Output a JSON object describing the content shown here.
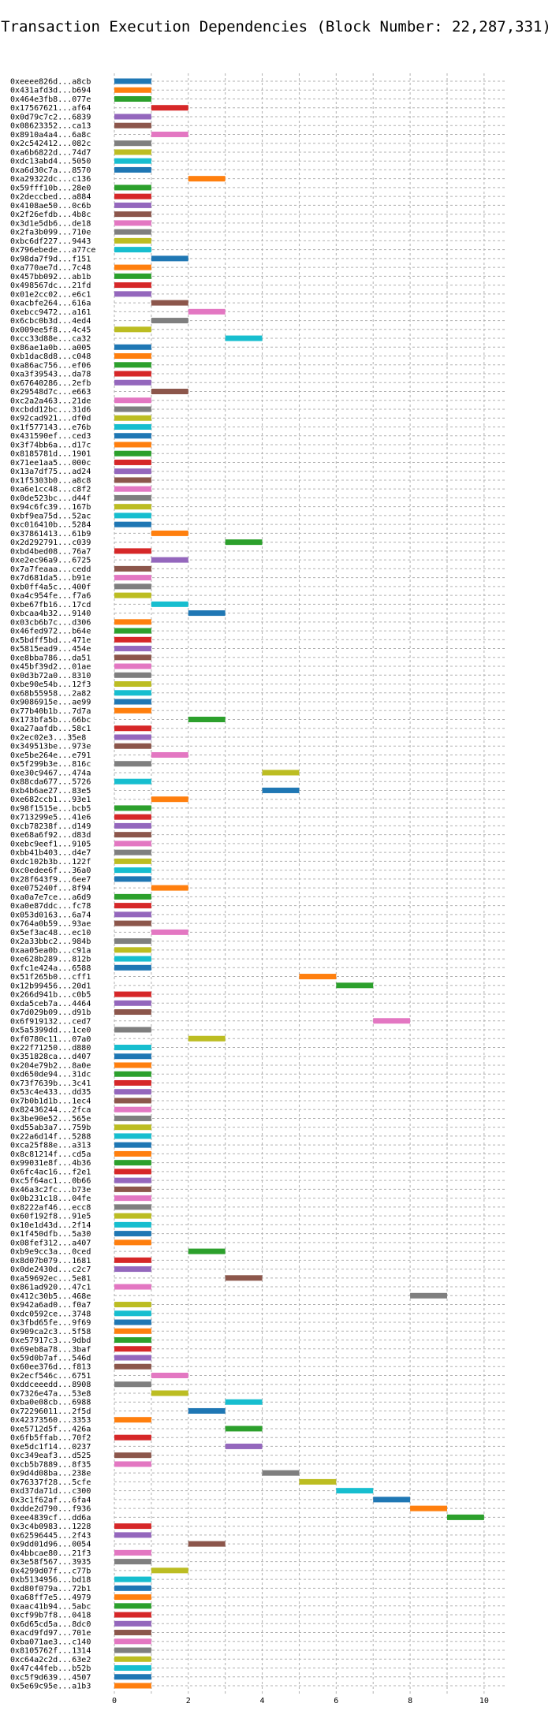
{
  "chart_data": {
    "type": "bar",
    "orientation": "horizontal",
    "title": "Transaction Execution Dependencies (Block Number: 22,287,331)",
    "xlabel": "",
    "ylabel": "",
    "xlim": [
      0,
      10.6
    ],
    "xticks": [
      0,
      2,
      4,
      6,
      8,
      10
    ],
    "grid": true,
    "colors": [
      "#1f77b4",
      "#ff7f0e",
      "#2ca02c",
      "#d62728",
      "#9467bd",
      "#8c564b",
      "#e377c2",
      "#7f7f7f",
      "#bcbd22",
      "#17becf"
    ],
    "transactions": [
      {
        "label": "0xeeee826d...a8cb",
        "start": 0,
        "end": 1
      },
      {
        "label": "0x431afd3d...b694",
        "start": 0,
        "end": 1
      },
      {
        "label": "0x464e3fb8...077e",
        "start": 0,
        "end": 1
      },
      {
        "label": "0x17567621...af64",
        "start": 1,
        "end": 2
      },
      {
        "label": "0x0d79c7c2...6839",
        "start": 0,
        "end": 1
      },
      {
        "label": "0x08623352...ca13",
        "start": 0,
        "end": 1
      },
      {
        "label": "0x8910a4a4...6a8c",
        "start": 1,
        "end": 2
      },
      {
        "label": "0x2c542412...082c",
        "start": 0,
        "end": 1
      },
      {
        "label": "0xa6b6822d...74d7",
        "start": 0,
        "end": 1
      },
      {
        "label": "0xdc13abd4...5050",
        "start": 0,
        "end": 1
      },
      {
        "label": "0xa6d30c7a...8570",
        "start": 0,
        "end": 1
      },
      {
        "label": "0xa29322dc...c136",
        "start": 2,
        "end": 3
      },
      {
        "label": "0x59fff10b...28e0",
        "start": 0,
        "end": 1
      },
      {
        "label": "0x2deccbed...a884",
        "start": 0,
        "end": 1
      },
      {
        "label": "0x4108ae50...0c6b",
        "start": 0,
        "end": 1
      },
      {
        "label": "0x2f26efdb...4b8c",
        "start": 0,
        "end": 1
      },
      {
        "label": "0x3d1e5db6...de18",
        "start": 0,
        "end": 1
      },
      {
        "label": "0x2fa3b099...710e",
        "start": 0,
        "end": 1
      },
      {
        "label": "0xbc6df227...9443",
        "start": 0,
        "end": 1
      },
      {
        "label": "0x796ebede...a77ce",
        "start": 0,
        "end": 1
      },
      {
        "label": "0x98da7f9d...f151",
        "start": 1,
        "end": 2
      },
      {
        "label": "0xa770ae7d...7c48",
        "start": 0,
        "end": 1
      },
      {
        "label": "0x457bb092...ab1b",
        "start": 0,
        "end": 1
      },
      {
        "label": "0x498567dc...21fd",
        "start": 0,
        "end": 1
      },
      {
        "label": "0x01e2cc02...e6c1",
        "start": 0,
        "end": 1
      },
      {
        "label": "0xacbfe264...616a",
        "start": 1,
        "end": 2
      },
      {
        "label": "0xebcc9472...a161",
        "start": 2,
        "end": 3
      },
      {
        "label": "0x6cbc0b3d...4ed4",
        "start": 1,
        "end": 2
      },
      {
        "label": "0x009ee5f8...4c45",
        "start": 0,
        "end": 1
      },
      {
        "label": "0xcc33d88e...ca32",
        "start": 3,
        "end": 4
      },
      {
        "label": "0x86ae1a0b...a005",
        "start": 0,
        "end": 1
      },
      {
        "label": "0xb1dac8d8...c048",
        "start": 0,
        "end": 1
      },
      {
        "label": "0xa86ac756...ef06",
        "start": 0,
        "end": 1
      },
      {
        "label": "0xa3f39543...da78",
        "start": 0,
        "end": 1
      },
      {
        "label": "0x67640286...2efb",
        "start": 0,
        "end": 1
      },
      {
        "label": "0x29548d7c...e663",
        "start": 1,
        "end": 2
      },
      {
        "label": "0xc2a2a463...21de",
        "start": 0,
        "end": 1
      },
      {
        "label": "0xcbdd12bc...31d6",
        "start": 0,
        "end": 1
      },
      {
        "label": "0x92cad921...df0d",
        "start": 0,
        "end": 1
      },
      {
        "label": "0x1f577143...e76b",
        "start": 0,
        "end": 1
      },
      {
        "label": "0x431590ef...ced3",
        "start": 0,
        "end": 1
      },
      {
        "label": "0x3f74bb6a...d17c",
        "start": 0,
        "end": 1
      },
      {
        "label": "0x8185781d...1901",
        "start": 0,
        "end": 1
      },
      {
        "label": "0x71ee1aa5...000c",
        "start": 0,
        "end": 1
      },
      {
        "label": "0x13a7df75...ad24",
        "start": 0,
        "end": 1
      },
      {
        "label": "0x1f5303b0...a8c8",
        "start": 0,
        "end": 1
      },
      {
        "label": "0xa6e1cc48...c8f2",
        "start": 0,
        "end": 1
      },
      {
        "label": "0x0de523bc...d44f",
        "start": 0,
        "end": 1
      },
      {
        "label": "0x94c6fc39...167b",
        "start": 0,
        "end": 1
      },
      {
        "label": "0xbf9ea75d...52ac",
        "start": 0,
        "end": 1
      },
      {
        "label": "0xc016410b...5284",
        "start": 0,
        "end": 1
      },
      {
        "label": "0x37861413...61b9",
        "start": 1,
        "end": 2
      },
      {
        "label": "0x2d292791...c039",
        "start": 3,
        "end": 4
      },
      {
        "label": "0xbd4bed08...76a7",
        "start": 0,
        "end": 1
      },
      {
        "label": "0xe2ec96a9...6725",
        "start": 1,
        "end": 2
      },
      {
        "label": "0x7a7feaaa...cedd",
        "start": 0,
        "end": 1
      },
      {
        "label": "0x7d681da5...b91e",
        "start": 0,
        "end": 1
      },
      {
        "label": "0xb0ff4a5c...400f",
        "start": 0,
        "end": 1
      },
      {
        "label": "0xa4c954fe...f7a6",
        "start": 0,
        "end": 1
      },
      {
        "label": "0xbe67fb16...17cd",
        "start": 1,
        "end": 2
      },
      {
        "label": "0xbcaa4b32...9140",
        "start": 2,
        "end": 3
      },
      {
        "label": "0x03cb6b7c...d306",
        "start": 0,
        "end": 1
      },
      {
        "label": "0x46fed972...b64e",
        "start": 0,
        "end": 1
      },
      {
        "label": "0x5bdff5bd...471e",
        "start": 0,
        "end": 1
      },
      {
        "label": "0x5815ead9...454e",
        "start": 0,
        "end": 1
      },
      {
        "label": "0xe8bba786...da51",
        "start": 0,
        "end": 1
      },
      {
        "label": "0x45bf39d2...01ae",
        "start": 0,
        "end": 1
      },
      {
        "label": "0x0d3b72a0...8310",
        "start": 0,
        "end": 1
      },
      {
        "label": "0xbe90e54b...12f3",
        "start": 0,
        "end": 1
      },
      {
        "label": "0x68b55958...2a82",
        "start": 0,
        "end": 1
      },
      {
        "label": "0x9086915e...ae99",
        "start": 0,
        "end": 1
      },
      {
        "label": "0x77b40b1b...7d7a",
        "start": 0,
        "end": 1
      },
      {
        "label": "0x173bfa5b...66bc",
        "start": 2,
        "end": 3
      },
      {
        "label": "0xa27aafdb...58c1",
        "start": 0,
        "end": 1
      },
      {
        "label": "0x2ec02e3...35e8",
        "start": 0,
        "end": 1
      },
      {
        "label": "0x349513be...973e",
        "start": 0,
        "end": 1
      },
      {
        "label": "0xe5be264e...e791",
        "start": 1,
        "end": 2
      },
      {
        "label": "0x5f299b3e...816c",
        "start": 0,
        "end": 1
      },
      {
        "label": "0xe30c9467...474a",
        "start": 4,
        "end": 5
      },
      {
        "label": "0x88cda677...5726",
        "start": 0,
        "end": 1
      },
      {
        "label": "0xb4b6ae27...83e5",
        "start": 4,
        "end": 5
      },
      {
        "label": "0xe682ccb1...93e1",
        "start": 1,
        "end": 2
      },
      {
        "label": "0x98f1515e...bcb5",
        "start": 0,
        "end": 1
      },
      {
        "label": "0x713299e5...41e6",
        "start": 0,
        "end": 1
      },
      {
        "label": "0xcb78238f...d149",
        "start": 0,
        "end": 1
      },
      {
        "label": "0xe68a6f92...d83d",
        "start": 0,
        "end": 1
      },
      {
        "label": "0xebc9eef1...9105",
        "start": 0,
        "end": 1
      },
      {
        "label": "0xbb41b403...d4e7",
        "start": 0,
        "end": 1
      },
      {
        "label": "0xdc102b3b...122f",
        "start": 0,
        "end": 1
      },
      {
        "label": "0xc0edee6f...36a0",
        "start": 0,
        "end": 1
      },
      {
        "label": "0x28f643f9...6ee7",
        "start": 0,
        "end": 1
      },
      {
        "label": "0xe075240f...8f94",
        "start": 1,
        "end": 2
      },
      {
        "label": "0xa0a7e7ce...a6d9",
        "start": 0,
        "end": 1
      },
      {
        "label": "0xa0e87ddc...fc78",
        "start": 0,
        "end": 1
      },
      {
        "label": "0x053d0163...6a74",
        "start": 0,
        "end": 1
      },
      {
        "label": "0x764a0b59...93ae",
        "start": 0,
        "end": 1
      },
      {
        "label": "0x5ef3ac48...ec10",
        "start": 1,
        "end": 2
      },
      {
        "label": "0x2a33bbc2...984b",
        "start": 0,
        "end": 1
      },
      {
        "label": "0xaa05ea0b...c91a",
        "start": 0,
        "end": 1
      },
      {
        "label": "0xe628b289...812b",
        "start": 0,
        "end": 1
      },
      {
        "label": "0xfc1e424a...6588",
        "start": 0,
        "end": 1
      },
      {
        "label": "0x51f265b0...cff1",
        "start": 5,
        "end": 6
      },
      {
        "label": "0x12b99456...20d1",
        "start": 6,
        "end": 7
      },
      {
        "label": "0x266d941b...c0b5",
        "start": 0,
        "end": 1
      },
      {
        "label": "0xda5ceb7a...4464",
        "start": 0,
        "end": 1
      },
      {
        "label": "0x7d029b09...d91b",
        "start": 0,
        "end": 1
      },
      {
        "label": "0x6f919132...ced7",
        "start": 7,
        "end": 8
      },
      {
        "label": "0x5a5399dd...1ce0",
        "start": 0,
        "end": 1
      },
      {
        "label": "0xf0780c11...07a0",
        "start": 2,
        "end": 3
      },
      {
        "label": "0x22f71250...d880",
        "start": 0,
        "end": 1
      },
      {
        "label": "0x351828ca...d407",
        "start": 0,
        "end": 1
      },
      {
        "label": "0x204e79b2...8a0e",
        "start": 0,
        "end": 1
      },
      {
        "label": "0xd650de94...31dc",
        "start": 0,
        "end": 1
      },
      {
        "label": "0x73f7639b...3c41",
        "start": 0,
        "end": 1
      },
      {
        "label": "0x53c4e433...dd35",
        "start": 0,
        "end": 1
      },
      {
        "label": "0x7b0b1d1b...1ec4",
        "start": 0,
        "end": 1
      },
      {
        "label": "0x82436244...2fca",
        "start": 0,
        "end": 1
      },
      {
        "label": "0x3be90e52...565e",
        "start": 0,
        "end": 1
      },
      {
        "label": "0xd55ab3a7...759b",
        "start": 0,
        "end": 1
      },
      {
        "label": "0x22a6d14f...5288",
        "start": 0,
        "end": 1
      },
      {
        "label": "0xca25f88e...a313",
        "start": 0,
        "end": 1
      },
      {
        "label": "0x8c81214f...cd5a",
        "start": 0,
        "end": 1
      },
      {
        "label": "0x99031e8f...4b36",
        "start": 0,
        "end": 1
      },
      {
        "label": "0x6fc4ac16...f2e1",
        "start": 0,
        "end": 1
      },
      {
        "label": "0xc5f64ac1...0b66",
        "start": 0,
        "end": 1
      },
      {
        "label": "0x46a3c2fc...b73e",
        "start": 0,
        "end": 1
      },
      {
        "label": "0x0b231c18...04fe",
        "start": 0,
        "end": 1
      },
      {
        "label": "0x8222af46...ecc8",
        "start": 0,
        "end": 1
      },
      {
        "label": "0x60f192f8...91e5",
        "start": 0,
        "end": 1
      },
      {
        "label": "0x10e1d43d...2f14",
        "start": 0,
        "end": 1
      },
      {
        "label": "0x1f450dfb...5a30",
        "start": 0,
        "end": 1
      },
      {
        "label": "0x08fef312...a407",
        "start": 0,
        "end": 1
      },
      {
        "label": "0xb9e9cc3a...0ced",
        "start": 2,
        "end": 3
      },
      {
        "label": "0x8d07b079...1681",
        "start": 0,
        "end": 1
      },
      {
        "label": "0x0de2430d...c2c7",
        "start": 0,
        "end": 1
      },
      {
        "label": "0xa59692ec...5e81",
        "start": 3,
        "end": 4
      },
      {
        "label": "0x861ad920...47c1",
        "start": 0,
        "end": 1
      },
      {
        "label": "0x412c30b5...468e",
        "start": 8,
        "end": 9
      },
      {
        "label": "0x942a6ad0...f0a7",
        "start": 0,
        "end": 1
      },
      {
        "label": "0xdc0592ce...3748",
        "start": 0,
        "end": 1
      },
      {
        "label": "0x3fbd65fe...9f69",
        "start": 0,
        "end": 1
      },
      {
        "label": "0x909ca2c3...5f58",
        "start": 0,
        "end": 1
      },
      {
        "label": "0xe57917c3...9dbd",
        "start": 0,
        "end": 1
      },
      {
        "label": "0x69eb8a78...3baf",
        "start": 0,
        "end": 1
      },
      {
        "label": "0x59d0b7af...546d",
        "start": 0,
        "end": 1
      },
      {
        "label": "0x60ee376d...f813",
        "start": 0,
        "end": 1
      },
      {
        "label": "0x2ecf546c...6751",
        "start": 1,
        "end": 2
      },
      {
        "label": "0xddceeedd...8908",
        "start": 0,
        "end": 1
      },
      {
        "label": "0x7326e47a...53e8",
        "start": 1,
        "end": 2
      },
      {
        "label": "0xba0e08cb...6988",
        "start": 3,
        "end": 4
      },
      {
        "label": "0x72296011...2f5d",
        "start": 2,
        "end": 3
      },
      {
        "label": "0x42373560...3353",
        "start": 0,
        "end": 1
      },
      {
        "label": "0xe5712d5f...426a",
        "start": 3,
        "end": 4
      },
      {
        "label": "0x6fb5ffab...70f2",
        "start": 0,
        "end": 1
      },
      {
        "label": "0xe5dc1f14...0237",
        "start": 3,
        "end": 4
      },
      {
        "label": "0xc349eaf3...d525",
        "start": 0,
        "end": 1
      },
      {
        "label": "0xcb5b7889...8f35",
        "start": 0,
        "end": 1
      },
      {
        "label": "0x9d4d08ba...238e",
        "start": 4,
        "end": 5
      },
      {
        "label": "0x76337f28...5cfe",
        "start": 5,
        "end": 6
      },
      {
        "label": "0xd37da71d...c300",
        "start": 6,
        "end": 7
      },
      {
        "label": "0x3c1f62af...6fa4",
        "start": 7,
        "end": 8
      },
      {
        "label": "0xdde2d790...f936",
        "start": 8,
        "end": 9
      },
      {
        "label": "0xee4839cf...dd6a",
        "start": 9,
        "end": 10
      },
      {
        "label": "0x3c4b0983...1228",
        "start": 0,
        "end": 1
      },
      {
        "label": "0x62596445...2f43",
        "start": 0,
        "end": 1
      },
      {
        "label": "0x9dd01d96...0054",
        "start": 2,
        "end": 3
      },
      {
        "label": "0x4bbcae80...21f3",
        "start": 0,
        "end": 1
      },
      {
        "label": "0x3e58f567...3935",
        "start": 0,
        "end": 1
      },
      {
        "label": "0x4299d07f...c77b",
        "start": 1,
        "end": 2
      },
      {
        "label": "0xb5134956...bd18",
        "start": 0,
        "end": 1
      },
      {
        "label": "0xd80f079a...72b1",
        "start": 0,
        "end": 1
      },
      {
        "label": "0xa68ff7e5...4979",
        "start": 0,
        "end": 1
      },
      {
        "label": "0xaac41b94...5abc",
        "start": 0,
        "end": 1
      },
      {
        "label": "0xcf99b7f8...0418",
        "start": 0,
        "end": 1
      },
      {
        "label": "0x6d65cd5a...8dc0",
        "start": 0,
        "end": 1
      },
      {
        "label": "0xacd9fd97...701e",
        "start": 0,
        "end": 1
      },
      {
        "label": "0xba071ae3...c140",
        "start": 0,
        "end": 1
      },
      {
        "label": "0x8105762f...1314",
        "start": 0,
        "end": 1
      },
      {
        "label": "0xc64a2c2d...63e2",
        "start": 0,
        "end": 1
      },
      {
        "label": "0x47c44feb...b52b",
        "start": 0,
        "end": 1
      },
      {
        "label": "0xc5f9d639...4507",
        "start": 0,
        "end": 1
      },
      {
        "label": "0x5e69c95e...a1b3",
        "start": 0,
        "end": 1
      }
    ]
  }
}
